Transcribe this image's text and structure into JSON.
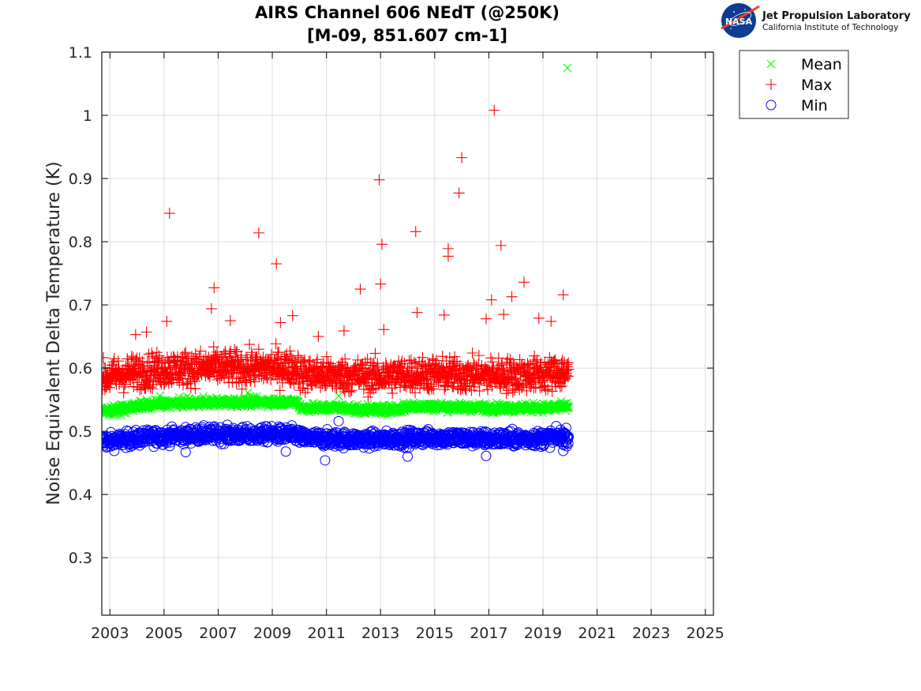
{
  "logo": {
    "badge_text": "NASA",
    "org_name": "Jet Propulsion Laboratory",
    "org_sub": "California Institute of Technology"
  },
  "chart_data": {
    "type": "scatter",
    "title": "AIRS Channel 606 NEdT (@250K)",
    "subtitle": "[M-09, 851.607 cm-1]",
    "xlabel": "",
    "ylabel": "Noise Equivalent Delta Temperature (K)",
    "xlim": [
      2002.7,
      2025.3
    ],
    "ylim": [
      0.209,
      1.1
    ],
    "xticks": [
      2003,
      2005,
      2007,
      2009,
      2011,
      2013,
      2015,
      2017,
      2019,
      2021,
      2023,
      2025
    ],
    "xtick_labels": [
      "2003",
      "2005",
      "2007",
      "2009",
      "2011",
      "2013",
      "2015",
      "2017",
      "2019",
      "2021",
      "2023",
      "2025"
    ],
    "yticks": [
      0.3,
      0.4,
      0.5,
      0.6,
      0.7,
      0.8,
      0.9,
      1.0,
      1.1
    ],
    "ytick_labels": [
      "0.3",
      "0.4",
      "0.5",
      "0.6",
      "0.7",
      "0.8",
      "0.9",
      "1",
      "1.1"
    ],
    "grid": true,
    "legend_position": "outside-top-right",
    "legend": [
      {
        "name": "Mean",
        "marker": "x",
        "color": "#00ff00"
      },
      {
        "name": "Max",
        "marker": "+",
        "color": "#ff0000"
      },
      {
        "name": "Min",
        "marker": "o",
        "color": "#0000ff"
      }
    ],
    "data_range_years": [
      2002.7,
      2019.95
    ],
    "series": [
      {
        "name": "Mean",
        "marker": "x",
        "color": "#00ff00",
        "trend": {
          "x": [
            2002.7,
            2003.2,
            2004.0,
            2005.0,
            2006.0,
            2007.0,
            2008.0,
            2009.0,
            2009.95,
            2010.05,
            2011.0,
            2011.5,
            2012.0,
            2013.0,
            2013.8,
            2014.0,
            2015.0,
            2016.0,
            2017.0,
            2018.0,
            2019.0,
            2019.95
          ],
          "y": [
            0.532,
            0.533,
            0.54,
            0.544,
            0.545,
            0.546,
            0.546,
            0.547,
            0.546,
            0.537,
            0.537,
            0.538,
            0.535,
            0.534,
            0.535,
            0.54,
            0.539,
            0.538,
            0.537,
            0.537,
            0.537,
            0.539
          ]
        },
        "spread": 0.006,
        "outliers": [
          {
            "x": 2004.85,
            "y": 0.556
          },
          {
            "x": 2006.45,
            "y": 0.555
          },
          {
            "x": 2008.1,
            "y": 0.561
          },
          {
            "x": 2011.45,
            "y": 0.556
          },
          {
            "x": 2013.85,
            "y": 0.545
          },
          {
            "x": 2019.9,
            "y": 1.075
          }
        ]
      },
      {
        "name": "Max",
        "marker": "+",
        "color": "#ff0000",
        "trend": {
          "x": [
            2002.7,
            2003.2,
            2004.0,
            2005.0,
            2006.0,
            2007.0,
            2008.0,
            2009.0,
            2009.95,
            2010.05,
            2011.0,
            2012.0,
            2013.0,
            2014.0,
            2015.0,
            2016.0,
            2017.0,
            2018.0,
            2019.0,
            2019.95
          ],
          "y": [
            0.584,
            0.588,
            0.594,
            0.598,
            0.6,
            0.601,
            0.6,
            0.601,
            0.6,
            0.59,
            0.589,
            0.588,
            0.587,
            0.59,
            0.59,
            0.589,
            0.589,
            0.589,
            0.59,
            0.594
          ]
        },
        "spread": 0.024,
        "outliers": [
          {
            "x": 2005.2,
            "y": 0.845
          },
          {
            "x": 2008.5,
            "y": 0.814
          },
          {
            "x": 2009.15,
            "y": 0.765
          },
          {
            "x": 2005.1,
            "y": 0.674
          },
          {
            "x": 2006.75,
            "y": 0.694
          },
          {
            "x": 2006.85,
            "y": 0.727
          },
          {
            "x": 2007.45,
            "y": 0.675
          },
          {
            "x": 2003.95,
            "y": 0.653
          },
          {
            "x": 2004.35,
            "y": 0.657
          },
          {
            "x": 2009.3,
            "y": 0.672
          },
          {
            "x": 2009.75,
            "y": 0.683
          },
          {
            "x": 2010.7,
            "y": 0.65
          },
          {
            "x": 2011.65,
            "y": 0.659
          },
          {
            "x": 2012.25,
            "y": 0.725
          },
          {
            "x": 2012.95,
            "y": 0.898
          },
          {
            "x": 2013.0,
            "y": 0.733
          },
          {
            "x": 2013.05,
            "y": 0.796
          },
          {
            "x": 2013.12,
            "y": 0.661
          },
          {
            "x": 2014.3,
            "y": 0.816
          },
          {
            "x": 2014.35,
            "y": 0.688
          },
          {
            "x": 2015.5,
            "y": 0.789
          },
          {
            "x": 2015.5,
            "y": 0.777
          },
          {
            "x": 2015.35,
            "y": 0.684
          },
          {
            "x": 2015.9,
            "y": 0.877
          },
          {
            "x": 2016.0,
            "y": 0.933
          },
          {
            "x": 2017.2,
            "y": 1.008
          },
          {
            "x": 2017.45,
            "y": 0.794
          },
          {
            "x": 2017.1,
            "y": 0.708
          },
          {
            "x": 2017.85,
            "y": 0.713
          },
          {
            "x": 2018.3,
            "y": 0.736
          },
          {
            "x": 2017.55,
            "y": 0.685
          },
          {
            "x": 2019.75,
            "y": 0.716
          },
          {
            "x": 2019.3,
            "y": 0.674
          },
          {
            "x": 2018.85,
            "y": 0.679
          },
          {
            "x": 2016.9,
            "y": 0.678
          }
        ]
      },
      {
        "name": "Min",
        "marker": "o",
        "color": "#0000ff",
        "trend": {
          "x": [
            2002.7,
            2003.2,
            2004.0,
            2005.0,
            2006.0,
            2007.0,
            2008.0,
            2009.0,
            2009.95,
            2010.05,
            2011.0,
            2012.0,
            2013.0,
            2014.0,
            2015.0,
            2016.0,
            2017.0,
            2018.0,
            2019.0,
            2019.95
          ],
          "y": [
            0.484,
            0.485,
            0.489,
            0.492,
            0.494,
            0.495,
            0.494,
            0.495,
            0.494,
            0.489,
            0.488,
            0.487,
            0.487,
            0.489,
            0.49,
            0.489,
            0.488,
            0.488,
            0.489,
            0.492
          ]
        },
        "spread": 0.011,
        "outliers": [
          {
            "x": 2010.95,
            "y": 0.454
          },
          {
            "x": 2014.0,
            "y": 0.46
          },
          {
            "x": 2016.9,
            "y": 0.461
          },
          {
            "x": 2009.5,
            "y": 0.468
          },
          {
            "x": 2005.8,
            "y": 0.467
          },
          {
            "x": 2011.45,
            "y": 0.516
          },
          {
            "x": 2019.75,
            "y": 0.469
          }
        ]
      }
    ]
  }
}
